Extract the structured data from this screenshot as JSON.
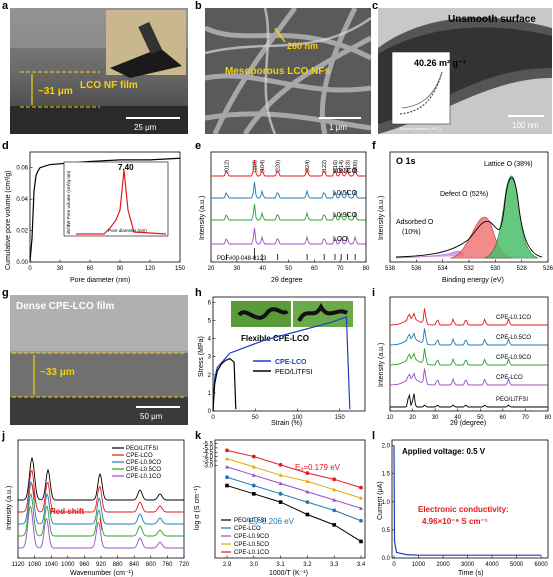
{
  "labels": {
    "a": "a",
    "b": "b",
    "c": "c",
    "d": "d",
    "e": "e",
    "f": "f",
    "g": "g",
    "h": "h",
    "i": "i",
    "j": "j",
    "k": "k",
    "l": "l"
  },
  "a": {
    "film": "LCO  NF film",
    "thickness": "~31 μm",
    "scale": "25 μm"
  },
  "b": {
    "size": "260 nm",
    "label": "Mesoporous LCO NFs",
    "scale": "1 μm"
  },
  "c": {
    "title": "Unsmooth surface",
    "bet": "40.26 m² g⁻¹",
    "scale": "100 nm",
    "inset_x": "Relative pressure (P/P₀)",
    "inset_y": "Quantity adsorbed (cm³ g⁻¹ STP)"
  },
  "d": {
    "ylabel": "Cumulative pore volume (cm³/g)",
    "xlabel": "Pore diameter (nm)",
    "inset_ylabel": "dV/dW Pore volume (cm³/g·nm)",
    "inset_xlabel": "Pore diameter (nm)",
    "peak": "7.40",
    "yticks": [
      "0.00",
      "0.02",
      "0.04",
      "0.06"
    ],
    "xticks": [
      "0",
      "30",
      "60",
      "90",
      "120",
      "150"
    ],
    "inset_yticks": [
      "0.000",
      "0.005",
      "0.010",
      "0.015"
    ],
    "inset_xticks": [
      "1",
      "10",
      "100"
    ]
  },
  "e": {
    "ylabel": "Intensity (a.u.)",
    "xlabel": "2θ degree",
    "pdf": "PDF#00-048-0123",
    "peaks": [
      "(012)",
      "(110)",
      "(104)",
      "(220)",
      "(024)",
      "(122)",
      "(116)",
      "(214)",
      "(018)",
      "(200)"
    ],
    "series": [
      "L0.1CO",
      "L0.5CO",
      "L0.9CO",
      "LCO"
    ],
    "xticks": [
      "20",
      "30",
      "40",
      "50",
      "60",
      "70",
      "80"
    ]
  },
  "f": {
    "title": "O 1s",
    "ylabel": "Intensity (a.u.)",
    "xlabel": "Binding energy (eV)",
    "lattice": "Lattice O (38%)",
    "defect": "Defect O (52%)",
    "adsorbed": "Adsorbed O",
    "adsorbed_pct": "(10%)",
    "xticks": [
      "538",
      "536",
      "534",
      "532",
      "530",
      "528",
      "526"
    ]
  },
  "g": {
    "title": "Dense CPE-LCO film",
    "thickness": "~33 μm",
    "scale": "50 μm"
  },
  "h": {
    "ylabel": "Stress (MPa)",
    "xlabel": "Strain (%)",
    "flex": "Flexible CPE-LCO",
    "legend1": "CPE-LCO",
    "legend2": "PEO/LiTFSI",
    "yticks": [
      "0",
      "1",
      "2",
      "3",
      "4",
      "5",
      "6"
    ],
    "xticks": [
      "0",
      "50",
      "100",
      "150"
    ]
  },
  "i": {
    "ylabel": "Intensity (a.u.)",
    "xlabel": "2θ (degree)",
    "series": [
      "CPE-L0.1CO",
      "CPE-L0.5CO",
      "CPE-L0.9CO",
      "CPE-LCO",
      "PEO/LiTFSI"
    ],
    "xticks": [
      "10",
      "20",
      "30",
      "40",
      "50",
      "60",
      "70",
      "80"
    ]
  },
  "j": {
    "ylabel": "Intensity (a.u.)",
    "xlabel": "Wavenumber (cm⁻¹)",
    "shift": "Red shift",
    "legend": [
      "PEO/LiTFSI",
      "CPE-LCO",
      "CPE-L0.9CO",
      "CPE-L0.5CO",
      "CPE-L0.1CO"
    ],
    "xticks": [
      "1120",
      "1080",
      "1040",
      "1000",
      "960",
      "920",
      "880",
      "840",
      "800",
      "760",
      "720"
    ]
  },
  "k": {
    "ylabel": "log σ (S cm⁻¹)",
    "xlabel": "1000/T (K⁻¹)",
    "ea1": "Eₐ=0.179 eV",
    "ea2": "Eₐ=0.206 eV",
    "legend": [
      "PEO/LiTFSI",
      "CPE-LCO",
      "CPE-L0.9CO",
      "CPE-L0.5CO",
      "CPE-L0.1CO"
    ],
    "yticks": [
      "-3.0",
      "-3.5",
      "-4.0",
      "-4.5",
      "-5.0",
      "-5.5"
    ],
    "xticks": [
      "2.9",
      "3.0",
      "3.1",
      "3.2",
      "3.3",
      "3.4"
    ]
  },
  "l": {
    "title": "Applied voltage: 0.5 V",
    "ylabel": "Current (μA)",
    "xlabel": "Time (s)",
    "econd": "Electronic conductivity:",
    "econd_val": "4.96×10⁻⁹ S cm⁻¹",
    "yticks": [
      "0.0",
      "0.5",
      "1.0",
      "1.5",
      "2.0"
    ],
    "xticks": [
      "0",
      "1000",
      "2000",
      "3000",
      "4000",
      "5000",
      "6000"
    ]
  },
  "chart_data": [
    {
      "type": "line",
      "panel": "d",
      "x": [
        0,
        2,
        4,
        6,
        8,
        10,
        20,
        40,
        60,
        90,
        120,
        150
      ],
      "values": [
        0,
        0.015,
        0.045,
        0.055,
        0.058,
        0.06,
        0.062,
        0.063,
        0.064,
        0.065,
        0.065,
        0.066
      ],
      "xlim": [
        0,
        150
      ],
      "ylim": [
        0,
        0.07
      ]
    },
    {
      "type": "line",
      "panel": "h",
      "series": [
        {
          "name": "CPE-LCO",
          "x": [
            0,
            2,
            5,
            20,
            60,
            100,
            140,
            158,
            162
          ],
          "values": [
            0,
            1.8,
            2.4,
            3.2,
            3.9,
            4.4,
            4.9,
            5.2,
            0.1
          ]
        },
        {
          "name": "PEO/LiTFSI",
          "x": [
            0,
            2,
            5,
            10,
            15,
            20,
            25,
            27
          ],
          "values": [
            0,
            1.5,
            2.2,
            2.6,
            2.8,
            2.9,
            2.7,
            0.1
          ]
        }
      ],
      "xlim": [
        0,
        180
      ],
      "ylim": [
        0,
        6
      ]
    },
    {
      "type": "line",
      "panel": "k",
      "x": [
        2.9,
        3.0,
        3.1,
        3.2,
        3.3,
        3.4
      ],
      "series": [
        {
          "name": "PEO/LiTFSI",
          "values": [
            -3.65,
            -3.85,
            -4.05,
            -4.35,
            -4.6,
            -5.0
          ]
        },
        {
          "name": "CPE-LCO",
          "values": [
            -3.45,
            -3.65,
            -3.85,
            -4.05,
            -4.25,
            -4.5
          ]
        },
        {
          "name": "CPE-L0.9CO",
          "values": [
            -3.2,
            -3.4,
            -3.6,
            -3.8,
            -4.0,
            -4.2
          ]
        },
        {
          "name": "CPE-L0.5CO",
          "values": [
            -3.0,
            -3.2,
            -3.4,
            -3.55,
            -3.75,
            -3.95
          ]
        },
        {
          "name": "CPE-L0.1CO",
          "values": [
            -2.8,
            -2.95,
            -3.15,
            -3.35,
            -3.5,
            -3.7
          ]
        }
      ]
    },
    {
      "type": "line",
      "panel": "l",
      "x": [
        0,
        20,
        100,
        500,
        1000,
        2000,
        3000,
        4000,
        5000,
        6000
      ],
      "values": [
        2.0,
        0.3,
        0.1,
        0.06,
        0.05,
        0.05,
        0.05,
        0.05,
        0.05,
        0.05
      ],
      "xlim": [
        0,
        6200
      ],
      "ylim": [
        0,
        2.1
      ]
    }
  ]
}
